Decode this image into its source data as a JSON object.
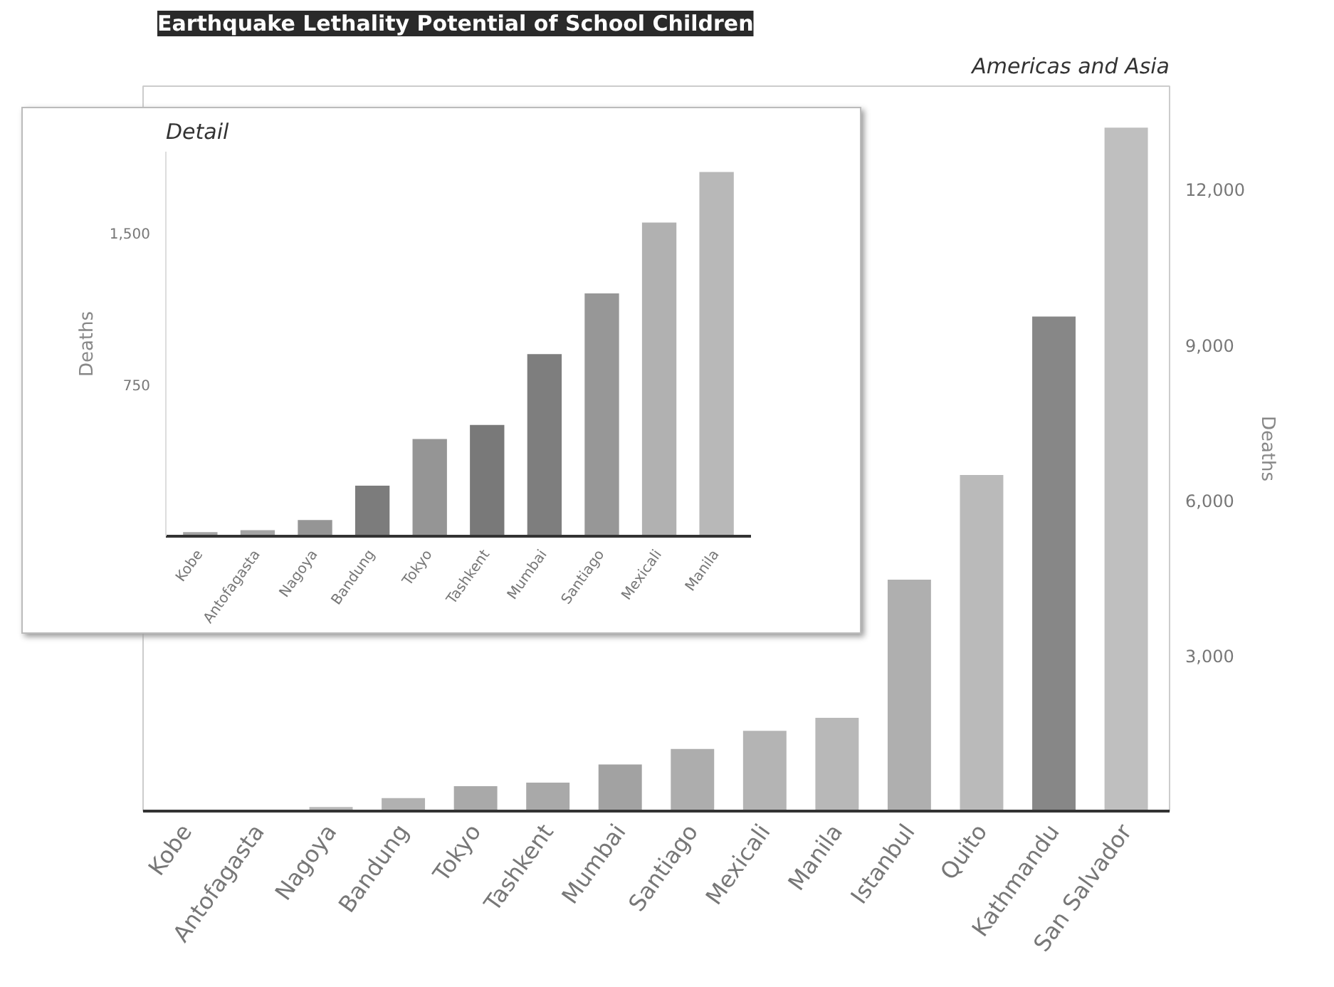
{
  "chart_data": [
    {
      "type": "bar",
      "title": "Earthquake Lethality Potential of School Children",
      "subtitle": "Americas and Asia",
      "ylabel": "Deaths",
      "categories": [
        "Kobe",
        "Antofagasta",
        "Nagoya",
        "Bandung",
        "Tokyo",
        "Tashkent",
        "Mumbai",
        "Santiago",
        "Mexicali",
        "Manila",
        "Istanbul",
        "Quito",
        "Kathmandu",
        "San Salvador"
      ],
      "values": [
        null,
        null,
        80,
        250,
        480,
        550,
        900,
        1200,
        1550,
        1800,
        4470,
        6490,
        9550,
        13200
      ],
      "colors": [
        "#b4b4b4",
        "#b4b4b4",
        "#b0b0b0",
        "#a8a8a8",
        "#a0a0a0",
        "#a0a0a0",
        "#989898",
        "#a4a4a4",
        "#acacac",
        "#b0b0b0",
        "#a6a6a6",
        "#b2b2b2",
        "#7a7a7a",
        "#b8b8b8"
      ],
      "ylim": [
        0,
        14000
      ],
      "yticks": [
        {
          "value": 3000,
          "label": "3,000"
        },
        {
          "value": 6000,
          "label": "6,000"
        },
        {
          "value": 9000,
          "label": "9,000"
        },
        {
          "value": 12000,
          "label": "12,000"
        }
      ]
    },
    {
      "type": "bar",
      "title": "Detail",
      "ylabel": "Deaths",
      "categories": [
        "Kobe",
        "Antofagasta",
        "Nagoya",
        "Bandung",
        "Tokyo",
        "Tashkent",
        "Mumbai",
        "Santiago",
        "Mexicali",
        "Manila"
      ],
      "values": [
        20,
        30,
        80,
        250,
        480,
        550,
        900,
        1200,
        1550,
        1800
      ],
      "colors": [
        "#9a9a9a",
        "#9a9a9a",
        "#8a8a8a",
        "#6e6e6e",
        "#8a8a8a",
        "#6a6a6a",
        "#707070",
        "#8c8c8c",
        "#a8a8a8",
        "#b0b0b0"
      ],
      "ylim": [
        0,
        1900
      ],
      "yticks": [
        {
          "value": 750,
          "label": "750"
        },
        {
          "value": 1500,
          "label": "1,500"
        }
      ]
    }
  ]
}
